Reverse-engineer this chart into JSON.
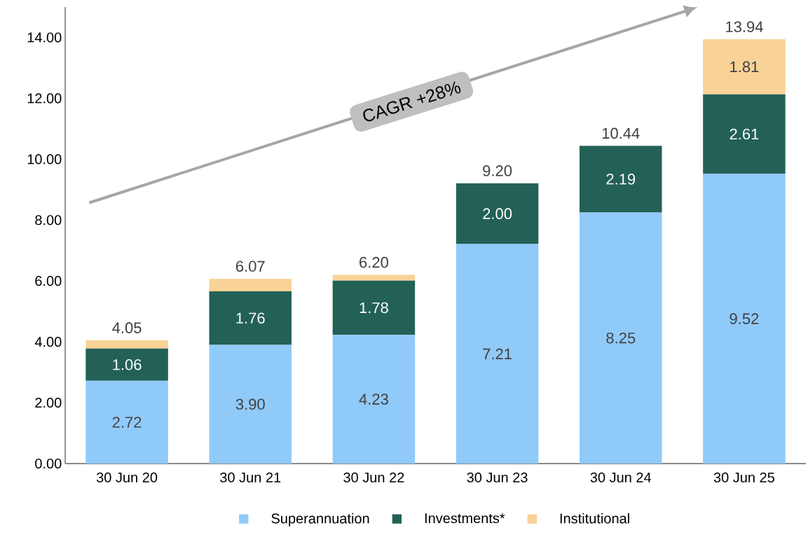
{
  "chart_data": {
    "type": "bar",
    "stacked": true,
    "categories": [
      "30 Jun 20",
      "30 Jun 21",
      "30 Jun 22",
      "30 Jun 23",
      "30 Jun 24",
      "30 Jun 25"
    ],
    "series": [
      {
        "name": "Superannuation",
        "color": "#90caf9",
        "values": [
          2.72,
          3.9,
          4.23,
          7.21,
          8.25,
          9.52
        ],
        "value_labels": [
          "2.72",
          "3.90",
          "4.23",
          "7.21",
          "8.25",
          "9.52"
        ]
      },
      {
        "name": "Investments*",
        "color": "#236157",
        "values": [
          1.06,
          1.76,
          1.78,
          2.0,
          2.19,
          2.61
        ],
        "value_labels": [
          "1.06",
          "1.76",
          "1.78",
          "2.00",
          "2.19",
          "2.61"
        ]
      },
      {
        "name": "Institutional",
        "color": "#f8d296",
        "values": [
          0.27,
          0.41,
          0.19,
          null,
          null,
          1.81
        ],
        "value_labels": [
          null,
          null,
          null,
          null,
          null,
          "1.81"
        ]
      }
    ],
    "totals": [
      "4.05",
      "6.07",
      "6.20",
      "9.20",
      "10.44",
      "13.94"
    ],
    "ylim": [
      0,
      15
    ],
    "yticks": [
      {
        "value": 0,
        "label": "0.00"
      },
      {
        "value": 2,
        "label": "2.00"
      },
      {
        "value": 4,
        "label": "4.00"
      },
      {
        "value": 6,
        "label": "6.00"
      },
      {
        "value": 8,
        "label": "8.00"
      },
      {
        "value": 10,
        "label": "10.00"
      },
      {
        "value": 12,
        "label": "12.00"
      },
      {
        "value": 14,
        "label": "14.00"
      }
    ],
    "annotations": [
      "CAGR +28%"
    ],
    "legend": "bottom",
    "grid": false
  }
}
